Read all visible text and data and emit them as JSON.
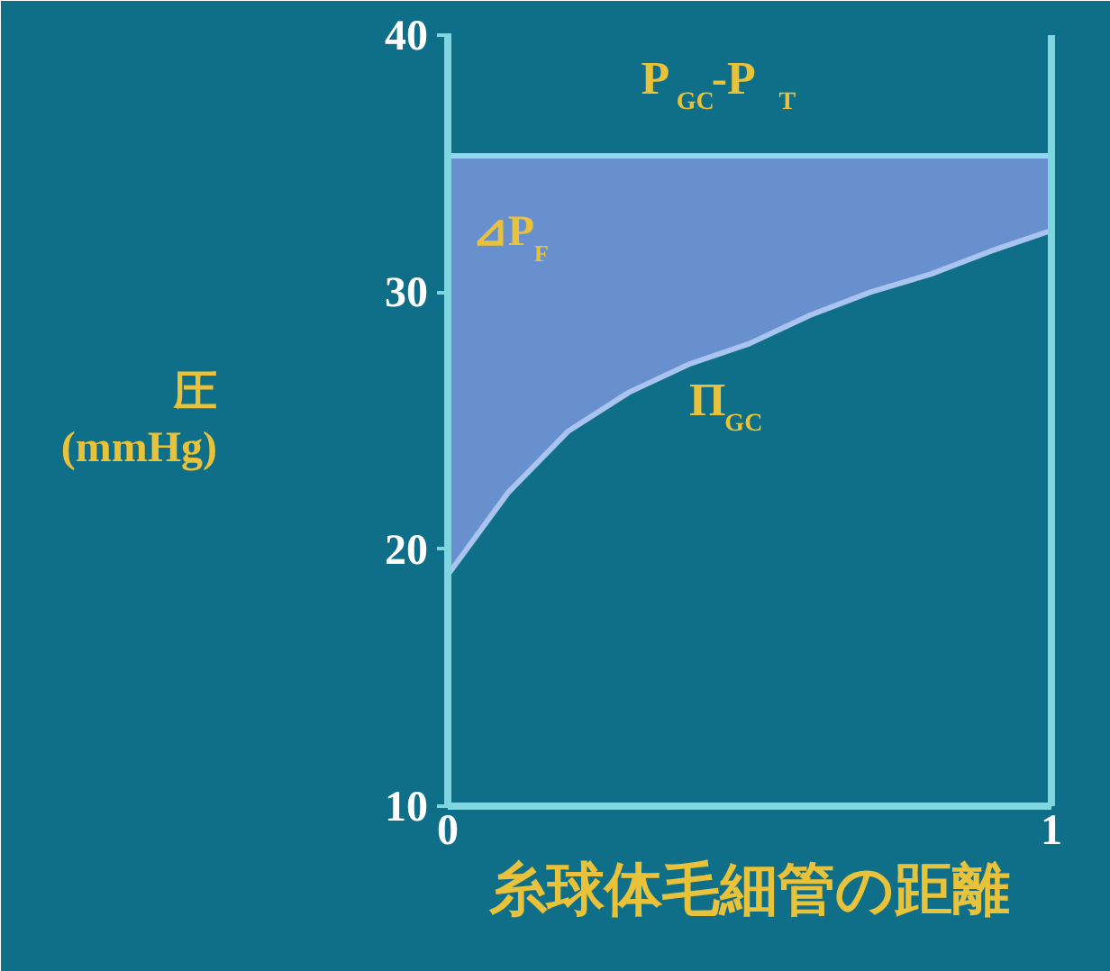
{
  "chart_data": {
    "type": "line",
    "xlabel": "糸球体毛細管の距離",
    "ylabel": "圧\n(mmHg)",
    "xlim": [
      0,
      1
    ],
    "ylim": [
      10,
      40
    ],
    "xticks": [
      0,
      1
    ],
    "yticks": [
      10,
      20,
      30,
      40
    ],
    "grid": false,
    "marker": "none",
    "line_style": "solid",
    "annotations": [
      "⊿P$_{F}$"
    ],
    "x": [
      0,
      0.1,
      0.2,
      0.3,
      0.4,
      0.5,
      0.6,
      0.7,
      0.8,
      0.9,
      1.0
    ],
    "series": [
      {
        "name": "P$_{GC}$-P$_{T}$",
        "color": "#8fd8f0",
        "values": [
          35.3,
          35.3,
          35.3,
          35.3,
          35.3,
          35.3,
          35.3,
          35.3,
          35.3,
          35.3,
          35.3
        ],
        "lower": [
          19,
          22.2,
          24.6,
          26.1,
          27.2,
          28.0,
          29.1,
          30.0,
          30.7,
          31.6,
          32.4
        ],
        "upper": [
          35.3,
          35.3,
          35.3,
          35.3,
          35.3,
          35.3,
          35.3,
          35.3,
          35.3,
          35.3,
          35.3
        ]
      },
      {
        "name": "Π$_{GC}$",
        "color": "#a9c4ee",
        "values": [
          19,
          22.2,
          24.6,
          26.1,
          27.2,
          28.0,
          29.1,
          30.0,
          30.7,
          31.6,
          32.4
        ]
      }
    ]
  }
}
